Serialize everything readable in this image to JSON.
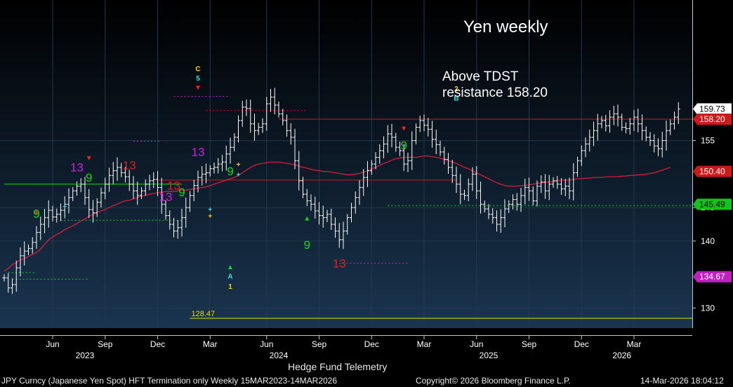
{
  "chart_data": {
    "type": "bar",
    "subtype": "weekly-ohlc-with-td-sequential",
    "title": "Yen weekly",
    "annotation": {
      "line1": "Above TDST",
      "line2": "resistance 158.20"
    },
    "y_axis": {
      "min": 127,
      "max": 176,
      "ticks": [
        130,
        140,
        145,
        155
      ],
      "tick_labels": [
        "130",
        "140",
        "145",
        "155"
      ],
      "side": "right"
    },
    "price_tags": [
      {
        "value": 159.73,
        "label": "159.73",
        "bg": "#ffffff",
        "fg": "#000000"
      },
      {
        "value": 158.2,
        "label": "158.20",
        "bg": "#cc1a1a",
        "fg": "#ffffff"
      },
      {
        "value": 150.4,
        "label": "150.40",
        "bg": "#cc1a1a",
        "fg": "#ffffff"
      },
      {
        "value": 145.49,
        "label": "145.49",
        "bg": "#15c41b",
        "fg": "#000000"
      },
      {
        "value": 134.67,
        "label": "134.67",
        "bg": "#c020c0",
        "fg": "#ffffff"
      }
    ],
    "x_axis": {
      "months": [
        {
          "label": "Jun",
          "week": 12
        },
        {
          "label": "Sep",
          "week": 25
        },
        {
          "label": "Dec",
          "week": 38
        },
        {
          "label": "Mar",
          "week": 51
        },
        {
          "label": "Jun",
          "week": 65
        },
        {
          "label": "Sep",
          "week": 78
        },
        {
          "label": "Dec",
          "week": 91
        },
        {
          "label": "Mar",
          "week": 104
        },
        {
          "label": "Jun",
          "week": 117
        },
        {
          "label": "Sep",
          "week": 130
        },
        {
          "label": "Dec",
          "week": 143
        },
        {
          "label": "Mar",
          "week": 156
        }
      ],
      "years": [
        {
          "label": "2023",
          "week": 20
        },
        {
          "label": "2024",
          "week": 68
        },
        {
          "label": "2025",
          "week": 120
        },
        {
          "label": "2026",
          "week": 153
        }
      ]
    },
    "series": [
      {
        "values": [
          134.5,
          133.0,
          133.5,
          136.0,
          137.8,
          138.5,
          138.9,
          139.8,
          141.3,
          142.5,
          143.5,
          144.6,
          143.6,
          144.0,
          144.6,
          145.5,
          146.5,
          147.5,
          148.2,
          148.5,
          146.5,
          144.7,
          144.2,
          145.8,
          147.2,
          148.5,
          149.8,
          150.5,
          151.0,
          150.2,
          149.6,
          148.5,
          147.5,
          146.8,
          147.5,
          148.5,
          149.0,
          149.2,
          148.0,
          145.5,
          143.8,
          142.5,
          141.5,
          142.0,
          143.5,
          145.0,
          146.8,
          148.3,
          149.5,
          150.0,
          150.2,
          150.8,
          151.0,
          151.5,
          151.8,
          153.0,
          154.0,
          155.5,
          158.0,
          160.0,
          159.8,
          157.5,
          156.5,
          157.0,
          157.5,
          160.5,
          161.5,
          160.3,
          159.0,
          158.0,
          156.5,
          155.5,
          152.0,
          149.0,
          147.0,
          146.0,
          145.5,
          144.5,
          143.8,
          143.5,
          144.0,
          142.5,
          141.5,
          140.2,
          141.5,
          143.5,
          145.0,
          146.5,
          148.0,
          149.5,
          150.5,
          151.5,
          152.5,
          153.5,
          154.5,
          156.0,
          155.5,
          154.0,
          153.5,
          151.5,
          152.0,
          155.0,
          157.0,
          158.0,
          157.3,
          156.7,
          155.2,
          154.4,
          153.3,
          152.2,
          151.0,
          149.8,
          148.5,
          147.0,
          146.8,
          148.5,
          150.0,
          147.5,
          145.5,
          144.8,
          144.0,
          143.5,
          142.5,
          143.5,
          144.8,
          145.5,
          146.2,
          145.5,
          146.8,
          148.0,
          147.5,
          146.0,
          148.2,
          148.8,
          147.5,
          148.5,
          149.0,
          148.5,
          147.8,
          148.2,
          147.5,
          150.2,
          152.0,
          153.5,
          154.5,
          155.5,
          156.5,
          157.5,
          158.0,
          157.2,
          158.5,
          159.0,
          158.5,
          157.0,
          156.8,
          157.5,
          158.5,
          157.5,
          156.5,
          155.5,
          155.0,
          154.2,
          153.8,
          155.0,
          156.5,
          157.5,
          158.5,
          159.73
        ]
      },
      {
        "values": [
          135.5,
          135.9,
          136.5,
          136.8,
          137.2,
          137.4,
          137.7,
          138.0,
          138.3,
          138.8,
          139.5,
          140.2,
          140.6,
          141.0,
          141.3,
          141.7,
          142.0,
          142.3,
          142.6,
          143.0,
          143.3,
          143.7,
          144.0,
          144.3,
          144.5,
          144.7,
          145.0,
          145.3,
          145.5,
          145.8,
          146.0,
          146.1,
          146.3,
          146.5,
          146.7,
          146.8,
          147.0,
          147.1,
          147.2,
          147.3,
          147.4,
          147.4,
          147.4,
          147.5,
          147.6,
          147.6,
          147.7,
          147.8,
          147.9,
          148.0,
          148.1,
          148.3,
          148.5,
          148.7,
          148.9,
          149.1,
          149.3,
          149.5,
          149.8,
          150.2,
          150.6,
          151.0,
          151.3,
          151.5,
          151.6,
          151.7,
          151.8,
          151.8,
          151.8,
          151.7,
          151.6,
          151.5,
          151.4,
          151.2,
          151.0,
          150.9,
          150.7,
          150.6,
          150.5,
          150.4,
          150.4,
          150.3,
          150.2,
          150.1,
          150.0,
          149.9,
          149.9,
          150.0,
          150.1,
          150.3,
          150.5,
          150.8,
          151.0,
          151.3,
          151.6,
          151.8,
          152.1,
          152.3,
          152.4,
          152.5,
          152.5,
          152.5,
          152.5,
          152.6,
          152.7,
          152.7,
          152.6,
          152.5,
          152.4,
          152.2,
          152.0,
          151.8,
          151.6,
          151.3,
          151.0,
          150.8,
          150.5,
          150.2,
          149.9,
          149.6,
          149.3,
          149.0,
          148.7,
          148.5,
          148.3,
          148.2,
          148.2,
          148.2,
          148.3,
          148.3,
          148.4,
          148.5,
          148.6,
          148.7,
          148.8,
          148.8,
          148.9,
          149.0,
          149.1,
          149.1,
          149.1,
          149.2,
          149.3,
          149.3,
          149.4,
          149.4,
          149.5,
          149.5,
          149.5,
          149.6,
          149.6,
          149.6,
          149.6,
          149.7,
          149.7,
          149.8,
          149.8,
          149.9,
          149.9,
          150.0,
          150.1,
          150.2,
          150.4,
          150.6,
          150.8,
          151.0
        ]
      }
    ],
    "horizontal_lines": [
      {
        "level": 148.5,
        "x0": 0,
        "x1": 44,
        "color": "#19d41f",
        "style": "solid"
      },
      {
        "level": 135.3,
        "x0": 1,
        "x1": 8,
        "color": "#19d41f",
        "style": "dotted"
      },
      {
        "level": 134.3,
        "x0": 2,
        "x1": 21,
        "color": "#19d41f",
        "style": "dotted"
      },
      {
        "level": 143.1,
        "x0": 14,
        "x1": 44,
        "color": "#19d41f",
        "style": "dotted"
      },
      {
        "level": 154.9,
        "x0": 32,
        "x1": 39,
        "color": "#c020c0",
        "style": "dotted"
      },
      {
        "level": 161.6,
        "x0": 42,
        "x1": 56,
        "color": "#c020c0",
        "style": "dotted"
      },
      {
        "level": 159.5,
        "x0": 50,
        "x1": 75,
        "color": "#cc1a1a",
        "style": "dotted"
      },
      {
        "level": 149.1,
        "x0": 38,
        "x1": 112,
        "color": "#cc1a1a",
        "style": "solid"
      },
      {
        "level": 158.2,
        "x0": 68,
        "x1": 174,
        "color": "#cc1a1a",
        "style": "solid"
      },
      {
        "level": 145.3,
        "x0": 95,
        "x1": 174,
        "color": "#19d41f",
        "style": "dotted"
      },
      {
        "level": 136.7,
        "x0": 83,
        "x1": 100,
        "color": "#c020c0",
        "style": "dotted"
      },
      {
        "level": 128.47,
        "x0": 46,
        "x1": 174,
        "color": "#e0e000",
        "style": "solid",
        "label": "128.47"
      }
    ],
    "td_counts": [
      {
        "text": "9",
        "week": 8,
        "color": "#19d41f",
        "pos": "above",
        "offset": 1.0
      },
      {
        "text": "13",
        "week": 18,
        "color": "#d21ee0",
        "pos": "above",
        "offset": 1.0
      },
      {
        "text": "9",
        "week": 21,
        "color": "#19d41f",
        "pos": "above",
        "offset": 3.0
      },
      {
        "text": "13",
        "week": 31,
        "color": "#e02020",
        "pos": "above",
        "offset": 1.0
      },
      {
        "text": "13",
        "week": 40,
        "color": "#d21ee0",
        "pos": "above",
        "offset": 1.0
      },
      {
        "text": "13",
        "week": 42,
        "color": "#e02020",
        "pos": "above",
        "offset": 5.0
      },
      {
        "text": "9",
        "week": 44,
        "color": "#19d41f",
        "pos": "above",
        "offset": 2.0
      },
      {
        "text": "13",
        "week": 48,
        "color": "#d21ee0",
        "pos": "above",
        "offset": 2.0
      },
      {
        "text": "9",
        "week": 56,
        "color": "#19d41f",
        "pos": "below",
        "offset": 1.5
      },
      {
        "text": "9",
        "week": 75,
        "color": "#19d41f",
        "pos": "below",
        "offset": 4.5
      },
      {
        "text": "13",
        "week": 83,
        "color": "#e02020",
        "pos": "below",
        "offset": 1.5
      },
      {
        "text": "9",
        "week": 99,
        "color": "#19d41f",
        "pos": "above",
        "offset": 1.0
      }
    ],
    "markers": [
      {
        "text": "▼",
        "week": 8,
        "color": "#ff2020",
        "level": 144.3
      },
      {
        "text": "▼",
        "week": 21,
        "color": "#ff2020",
        "level": 152.5
      },
      {
        "text": "▼",
        "week": 48,
        "color": "#ff2020",
        "level": 163.0
      },
      {
        "text": "▼",
        "week": 99,
        "color": "#ff2020",
        "level": 156.9
      },
      {
        "text": "▲",
        "week": 56,
        "color": "#19d41f",
        "level": 136.2
      },
      {
        "text": "▲",
        "week": 75,
        "color": "#19d41f",
        "level": 143.5
      },
      {
        "text": "C",
        "week": 48,
        "color": "#ffd400",
        "level": 165.8
      },
      {
        "text": "5",
        "week": 48,
        "color": "#40e0e0",
        "level": 164.4
      },
      {
        "text": "A",
        "week": 56,
        "color": "#40e0e0",
        "level": 134.8
      },
      {
        "text": "1",
        "week": 56,
        "color": "#ffd400",
        "level": 133.3
      },
      {
        "text": "2",
        "week": 112,
        "color": "#ffd400",
        "level": 162.8
      },
      {
        "text": "B",
        "week": 112,
        "color": "#40e0e0",
        "level": 161.4
      },
      {
        "text": "+",
        "week": 15,
        "color": "#40e0e0",
        "level": 145.2
      },
      {
        "text": "+",
        "week": 51,
        "color": "#40e0e0",
        "level": 144.8
      },
      {
        "text": "+",
        "week": 51,
        "color": "#ffd400",
        "level": 143.8
      },
      {
        "text": "+",
        "week": 58,
        "color": "#ffd400",
        "level": 151.5
      },
      {
        "text": "+",
        "week": 58,
        "color": "#40e0e0",
        "level": 150.0
      }
    ]
  },
  "hft_label": "Hedge Fund Telemetry",
  "footer": {
    "left": "JPY Curncy (Japanese Yen Spot) HFT Termination only Weekly 15MAR2023-14MAR2026",
    "center": "Copyright© 2026 Bloomberg Finance L.P.",
    "right": "14-Mar-2026 18:04:12"
  },
  "colors": {
    "bars": "#ffffff",
    "ma": "#d81c3c",
    "bg_top": "#000000",
    "bg_bottom": "#1a3550"
  }
}
